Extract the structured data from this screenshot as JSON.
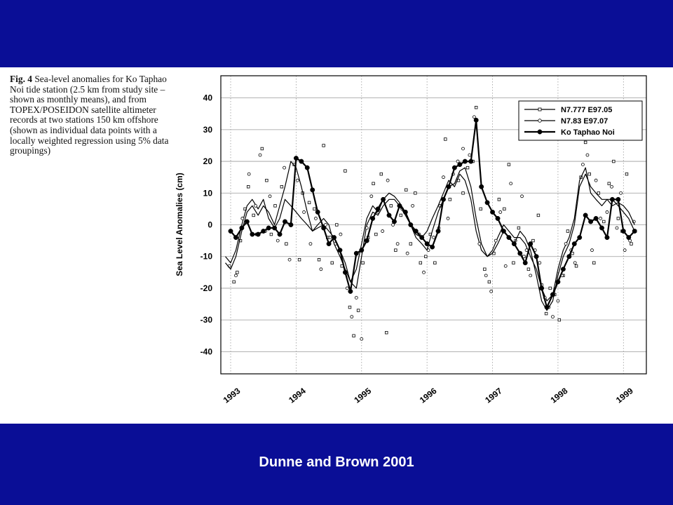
{
  "caption": {
    "figure_label": "Fig. 4",
    "text": "Sea-level anomalies for Ko Taphao Noi tide station (2.5 km from study site – shown as monthly means), and from TOPEX/POSEIDON satellite altimeter records at two stations 150 km offshore (shown as individual data points with a locally weighted regression using 5% data groupings)"
  },
  "footer": {
    "credit": "Dunne and Brown 2001"
  },
  "colors": {
    "band": "#0a0e96",
    "footer_text": "#ffffff",
    "ink": "#000000",
    "grid": "#9a9a9a"
  },
  "chart_data": {
    "type": "line",
    "title": "",
    "xlabel": "",
    "ylabel": "Sea Level Anomalies (cm)",
    "xlim": [
      1992.85,
      1999.35
    ],
    "ylim": [
      -47,
      47
    ],
    "yticks": [
      40,
      30,
      20,
      10,
      0,
      -10,
      -20,
      -30,
      -40
    ],
    "xticks": [
      {
        "label": "1993",
        "value": 1993.0
      },
      {
        "label": "1994",
        "value": 1994.0
      },
      {
        "label": "1995",
        "value": 1995.0
      },
      {
        "label": "1996",
        "value": 1996.0
      },
      {
        "label": "1997",
        "value": 1997.0
      },
      {
        "label": "1998",
        "value": 1998.0
      },
      {
        "label": "1999",
        "value": 1999.0
      }
    ],
    "grid": true,
    "legend_position": "top-right",
    "series": [
      {
        "name": "N7.777 E97.05",
        "marker": "small-square",
        "x": [
          1992.92,
          1993.0,
          1993.08,
          1993.17,
          1993.25,
          1993.33,
          1993.42,
          1993.5,
          1993.58,
          1993.67,
          1993.75,
          1993.83,
          1993.92,
          1994.0,
          1994.08,
          1994.17,
          1994.25,
          1994.33,
          1994.42,
          1994.5,
          1994.58,
          1994.67,
          1994.75,
          1994.83,
          1994.92,
          1995.0,
          1995.08,
          1995.17,
          1995.25,
          1995.33,
          1995.42,
          1995.5,
          1995.58,
          1995.67,
          1995.75,
          1995.83,
          1995.92,
          1996.0,
          1996.08,
          1996.17,
          1996.25,
          1996.33,
          1996.42,
          1996.5,
          1996.58,
          1996.67,
          1996.75,
          1996.83,
          1996.92,
          1997.0,
          1997.08,
          1997.17,
          1997.25,
          1997.33,
          1997.42,
          1997.5,
          1997.58,
          1997.67,
          1997.75,
          1997.83,
          1997.92,
          1998.0,
          1998.08,
          1998.17,
          1998.25,
          1998.33,
          1998.42,
          1998.5,
          1998.58,
          1998.67,
          1998.75,
          1998.83,
          1998.92,
          1999.0,
          1999.08,
          1999.17
        ],
        "y": [
          -10,
          -12,
          -8,
          0,
          6,
          8,
          5,
          8,
          2,
          -1,
          2,
          8,
          6,
          4,
          2,
          0,
          -2,
          -1,
          0,
          -2,
          -4,
          -8,
          -12,
          -18,
          -20,
          -10,
          0,
          4,
          3,
          6,
          8,
          8,
          6,
          3,
          0,
          -3,
          -4,
          -2,
          2,
          6,
          10,
          14,
          12,
          16,
          14,
          8,
          -2,
          -8,
          -10,
          -8,
          -4,
          0,
          -2,
          -4,
          -4,
          -6,
          -10,
          -14,
          -20,
          -24,
          -22,
          -14,
          -8,
          -4,
          2,
          14,
          18,
          10,
          8,
          6,
          8,
          8,
          6,
          4,
          2,
          -2
        ],
        "points": [
          [
            1993.05,
            -18
          ],
          [
            1993.1,
            -15
          ],
          [
            1993.15,
            -5
          ],
          [
            1993.22,
            5
          ],
          [
            1993.27,
            12
          ],
          [
            1993.35,
            3
          ],
          [
            1993.4,
            -3
          ],
          [
            1993.48,
            24
          ],
          [
            1993.55,
            14
          ],
          [
            1993.62,
            -3
          ],
          [
            1993.68,
            6
          ],
          [
            1993.78,
            12
          ],
          [
            1993.85,
            -6
          ],
          [
            1993.97,
            19
          ],
          [
            1994.05,
            -11
          ],
          [
            1994.1,
            10
          ],
          [
            1994.2,
            7
          ],
          [
            1994.28,
            5
          ],
          [
            1994.35,
            -11
          ],
          [
            1994.42,
            25
          ],
          [
            1994.48,
            -4
          ],
          [
            1994.55,
            -12
          ],
          [
            1994.62,
            0
          ],
          [
            1994.7,
            -13
          ],
          [
            1994.75,
            17
          ],
          [
            1994.82,
            -26
          ],
          [
            1994.88,
            -35
          ],
          [
            1994.95,
            -27
          ],
          [
            1995.02,
            -12
          ],
          [
            1995.1,
            -4
          ],
          [
            1995.18,
            13
          ],
          [
            1995.22,
            -3
          ],
          [
            1995.3,
            16
          ],
          [
            1995.38,
            -34
          ],
          [
            1995.45,
            6
          ],
          [
            1995.52,
            -8
          ],
          [
            1995.6,
            3
          ],
          [
            1995.68,
            11
          ],
          [
            1995.75,
            -6
          ],
          [
            1995.82,
            10
          ],
          [
            1995.9,
            -12
          ],
          [
            1995.98,
            -10
          ],
          [
            1996.05,
            -3
          ],
          [
            1996.12,
            -12
          ],
          [
            1996.2,
            6
          ],
          [
            1996.28,
            27
          ],
          [
            1996.35,
            8
          ],
          [
            1996.42,
            18
          ],
          [
            1996.48,
            14
          ],
          [
            1996.55,
            10
          ],
          [
            1996.62,
            18
          ],
          [
            1996.7,
            20
          ],
          [
            1996.75,
            37
          ],
          [
            1996.82,
            5
          ],
          [
            1996.88,
            -14
          ],
          [
            1996.95,
            -18
          ],
          [
            1997.02,
            -9
          ],
          [
            1997.1,
            8
          ],
          [
            1997.18,
            5
          ],
          [
            1997.25,
            19
          ],
          [
            1997.32,
            -12
          ],
          [
            1997.4,
            -1
          ],
          [
            1997.48,
            -10
          ],
          [
            1997.55,
            -14
          ],
          [
            1997.62,
            -5
          ],
          [
            1997.7,
            3
          ],
          [
            1997.75,
            -19
          ],
          [
            1997.82,
            -28
          ],
          [
            1997.88,
            -20
          ],
          [
            1997.95,
            -22
          ],
          [
            1998.02,
            -30
          ],
          [
            1998.08,
            -16
          ],
          [
            1998.15,
            -2
          ],
          [
            1998.22,
            -9
          ],
          [
            1998.28,
            -13
          ],
          [
            1998.35,
            15
          ],
          [
            1998.42,
            26
          ],
          [
            1998.48,
            16
          ],
          [
            1998.55,
            -12
          ],
          [
            1998.62,
            10
          ],
          [
            1998.7,
            1
          ],
          [
            1998.78,
            13
          ],
          [
            1998.85,
            20
          ],
          [
            1998.92,
            2
          ],
          [
            1998.98,
            -2
          ],
          [
            1999.05,
            16
          ],
          [
            1999.12,
            -6
          ],
          [
            1999.18,
            -2
          ]
        ]
      },
      {
        "name": "N7.83 E97.07",
        "marker": "small-circle",
        "x": [
          1992.92,
          1993.0,
          1993.08,
          1993.17,
          1993.25,
          1993.33,
          1993.42,
          1993.5,
          1993.58,
          1993.67,
          1993.75,
          1993.83,
          1993.92,
          1994.0,
          1994.08,
          1994.17,
          1994.25,
          1994.33,
          1994.42,
          1994.5,
          1994.58,
          1994.67,
          1994.75,
          1994.83,
          1994.92,
          1995.0,
          1995.08,
          1995.17,
          1995.25,
          1995.33,
          1995.42,
          1995.5,
          1995.58,
          1995.67,
          1995.75,
          1995.83,
          1995.92,
          1996.0,
          1996.08,
          1996.17,
          1996.25,
          1996.33,
          1996.42,
          1996.5,
          1996.58,
          1996.67,
          1996.75,
          1996.83,
          1996.92,
          1997.0,
          1997.08,
          1997.17,
          1997.25,
          1997.33,
          1997.42,
          1997.5,
          1997.58,
          1997.67,
          1997.75,
          1997.83,
          1997.92,
          1998.0,
          1998.08,
          1998.17,
          1998.25,
          1998.33,
          1998.42,
          1998.5,
          1998.58,
          1998.67,
          1998.75,
          1998.83,
          1998.92,
          1999.0,
          1999.08,
          1999.17
        ],
        "y": [
          -12,
          -14,
          -10,
          -2,
          4,
          6,
          3,
          6,
          4,
          0,
          6,
          12,
          20,
          18,
          12,
          4,
          -2,
          0,
          2,
          0,
          -6,
          -10,
          -14,
          -18,
          -14,
          -6,
          2,
          6,
          4,
          8,
          10,
          9,
          7,
          4,
          0,
          -4,
          -6,
          -8,
          -2,
          4,
          8,
          12,
          13,
          17,
          18,
          12,
          2,
          -6,
          -10,
          -9,
          -6,
          -2,
          -4,
          -6,
          -2,
          -4,
          -8,
          -16,
          -24,
          -27,
          -24,
          -16,
          -10,
          -6,
          0,
          12,
          16,
          12,
          10,
          8,
          8,
          6,
          7,
          6,
          4,
          0
        ],
        "points": [
          [
            1992.98,
            -13
          ],
          [
            1993.08,
            -16
          ],
          [
            1993.18,
            2
          ],
          [
            1993.28,
            16
          ],
          [
            1993.38,
            6
          ],
          [
            1993.45,
            22
          ],
          [
            1993.53,
            -2
          ],
          [
            1993.6,
            9
          ],
          [
            1993.72,
            -5
          ],
          [
            1993.82,
            18
          ],
          [
            1993.9,
            -11
          ],
          [
            1994.02,
            14
          ],
          [
            1994.12,
            4
          ],
          [
            1994.22,
            -6
          ],
          [
            1994.3,
            2
          ],
          [
            1994.38,
            -14
          ],
          [
            1994.45,
            0
          ],
          [
            1994.52,
            -4
          ],
          [
            1994.6,
            -6
          ],
          [
            1994.68,
            -3
          ],
          [
            1994.78,
            -20
          ],
          [
            1994.85,
            -29
          ],
          [
            1994.92,
            -23
          ],
          [
            1995.0,
            -36
          ],
          [
            1995.08,
            -1
          ],
          [
            1995.15,
            9
          ],
          [
            1995.25,
            4
          ],
          [
            1995.32,
            -2
          ],
          [
            1995.4,
            14
          ],
          [
            1995.48,
            0
          ],
          [
            1995.55,
            -6
          ],
          [
            1995.62,
            5
          ],
          [
            1995.7,
            -9
          ],
          [
            1995.78,
            6
          ],
          [
            1995.88,
            -3
          ],
          [
            1995.95,
            -15
          ],
          [
            1996.02,
            -8
          ],
          [
            1996.1,
            -4
          ],
          [
            1996.18,
            -1
          ],
          [
            1996.25,
            15
          ],
          [
            1996.32,
            2
          ],
          [
            1996.4,
            16
          ],
          [
            1996.47,
            20
          ],
          [
            1996.55,
            24
          ],
          [
            1996.65,
            22
          ],
          [
            1996.72,
            34
          ],
          [
            1996.8,
            -6
          ],
          [
            1996.9,
            -16
          ],
          [
            1996.98,
            -21
          ],
          [
            1997.05,
            -5
          ],
          [
            1997.12,
            4
          ],
          [
            1997.2,
            -13
          ],
          [
            1997.28,
            13
          ],
          [
            1997.35,
            -5
          ],
          [
            1997.45,
            9
          ],
          [
            1997.52,
            -8
          ],
          [
            1997.58,
            -16
          ],
          [
            1997.65,
            -8
          ],
          [
            1997.72,
            -12
          ],
          [
            1997.8,
            -23
          ],
          [
            1997.86,
            -26
          ],
          [
            1997.92,
            -29
          ],
          [
            1998.0,
            -24
          ],
          [
            1998.06,
            -16
          ],
          [
            1998.12,
            -6
          ],
          [
            1998.2,
            -8
          ],
          [
            1998.26,
            -12
          ],
          [
            1998.32,
            -4
          ],
          [
            1998.38,
            19
          ],
          [
            1998.45,
            22
          ],
          [
            1998.52,
            -8
          ],
          [
            1998.58,
            14
          ],
          [
            1998.65,
            2
          ],
          [
            1998.75,
            4
          ],
          [
            1998.82,
            12
          ],
          [
            1998.9,
            -1
          ],
          [
            1998.96,
            10
          ],
          [
            1999.02,
            -8
          ],
          [
            1999.1,
            -5
          ],
          [
            1999.16,
            1
          ]
        ]
      },
      {
        "name": "Ko Taphao Noi",
        "marker": "filled-circle",
        "x": [
          1993.0,
          1993.08,
          1993.17,
          1993.25,
          1993.33,
          1993.42,
          1993.5,
          1993.58,
          1993.67,
          1993.75,
          1993.83,
          1993.92,
          1994.0,
          1994.08,
          1994.17,
          1994.25,
          1994.33,
          1994.42,
          1994.5,
          1994.58,
          1994.67,
          1994.75,
          1994.83,
          1994.92,
          1995.0,
          1995.08,
          1995.17,
          1995.25,
          1995.33,
          1995.42,
          1995.5,
          1995.58,
          1995.67,
          1995.75,
          1995.83,
          1995.92,
          1996.0,
          1996.08,
          1996.17,
          1996.25,
          1996.33,
          1996.42,
          1996.5,
          1996.58,
          1996.67,
          1996.75,
          1996.83,
          1996.92,
          1997.0,
          1997.08,
          1997.17,
          1997.25,
          1997.33,
          1997.42,
          1997.5,
          1997.58,
          1997.67,
          1997.75,
          1997.83,
          1997.92,
          1998.0,
          1998.08,
          1998.17,
          1998.25,
          1998.33,
          1998.42,
          1998.5,
          1998.58,
          1998.67,
          1998.75,
          1998.83,
          1998.92,
          1999.0,
          1999.08,
          1999.17
        ],
        "y": [
          -2,
          -4,
          -1,
          1,
          -3,
          -3,
          -2,
          -1,
          -1,
          -3,
          1,
          0,
          21,
          20,
          18,
          11,
          4,
          -1,
          -6,
          -4,
          -8,
          -15,
          -21,
          -9,
          -8,
          -5,
          2,
          5,
          8,
          3,
          1,
          6,
          4,
          0,
          -2,
          -4,
          -6,
          -7,
          -2,
          8,
          12,
          18,
          19,
          20,
          20,
          33,
          12,
          7,
          4,
          2,
          -2,
          -4,
          -6,
          -9,
          -12,
          -6,
          -10,
          -20,
          -26,
          -22,
          -18,
          -14,
          -10,
          -6,
          -4,
          3,
          1,
          2,
          -1,
          -4,
          8,
          8,
          -2,
          -4,
          -2
        ]
      }
    ]
  }
}
